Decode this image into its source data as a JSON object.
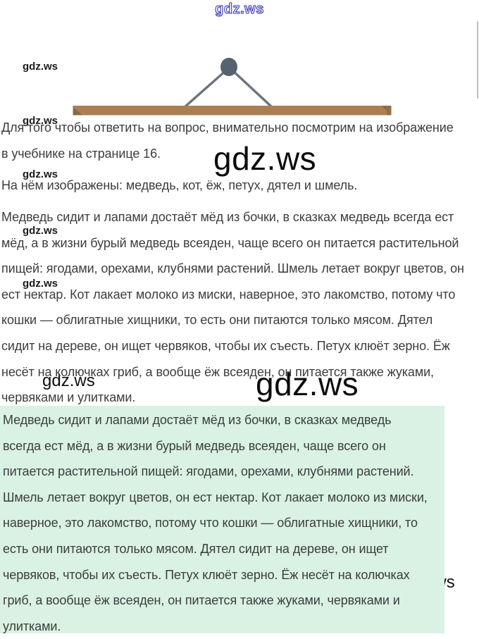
{
  "logo": {
    "text": "gdz.ws"
  },
  "watermark": {
    "text": "gdz.ws"
  },
  "colors": {
    "highlight_bg": "#d9f2e3",
    "board_brown": "#ab7e52",
    "board_brown_dark": "#8c6842",
    "nail_gray": "#57626f",
    "wire_gray": "#6b7580",
    "logo_blue": "#3b3bb0",
    "text_gray": "#3d3d3d"
  },
  "illustration": {
    "name": "hanging-picture-frame-top"
  },
  "answer": {
    "intro_lines": [
      "Для того чтобы ответить на вопрос, внимательно посмотрим на изображение",
      "в учебнике на странице 16."
    ],
    "depicted_line": "На нём изображены: медведь, кот, ёж, петух, дятел и шмель.",
    "body_lines": [
      "Медведь сидит и лапами достаёт мёд из бочки, в сказках медведь всегда ест",
      "мёд, а в жизни бурый медведь всеяден, чаще всего он питается растительной",
      "пищей: ягодами, орехами, клубнями растений. Шмель летает вокруг цветов, он",
      "ест нектар. Кот лакает молоко из миски, наверное, это лакомство, потому что",
      "кошки — облигатные хищники, то есть они питаются только мясом. Дятел",
      "сидит на дереве, он ищет червяков, чтобы их съесть. Петух клюёт зерно. Ёж",
      "несёт на колючках гриб, а вообще ёж всеяден, он питается также жуками,",
      "червяками и улитками."
    ],
    "highlight_lines": [
      "Медведь сидит и лапами достаёт мёд из бочки, в сказках медведь",
      "всегда ест мёд, а в жизни бурый медведь всеяден, чаще всего он",
      "питается растительной пищей: ягодами, орехами, клубнями растений.",
      "Шмель летает вокруг цветов, он ест нектар. Кот лакает молоко из миски,",
      "наверное, это лакомство, потому что кошки — облигатные хищники, то",
      "есть они питаются только мясом. Дятел сидит на дереве, он ищет",
      "червяков, чтобы их съесть. Петух клюёт зерно. Ёж несёт на колючках",
      "гриб, а вообще ёж всеяден, он питается также жуками, червяками и",
      "улитками."
    ]
  }
}
